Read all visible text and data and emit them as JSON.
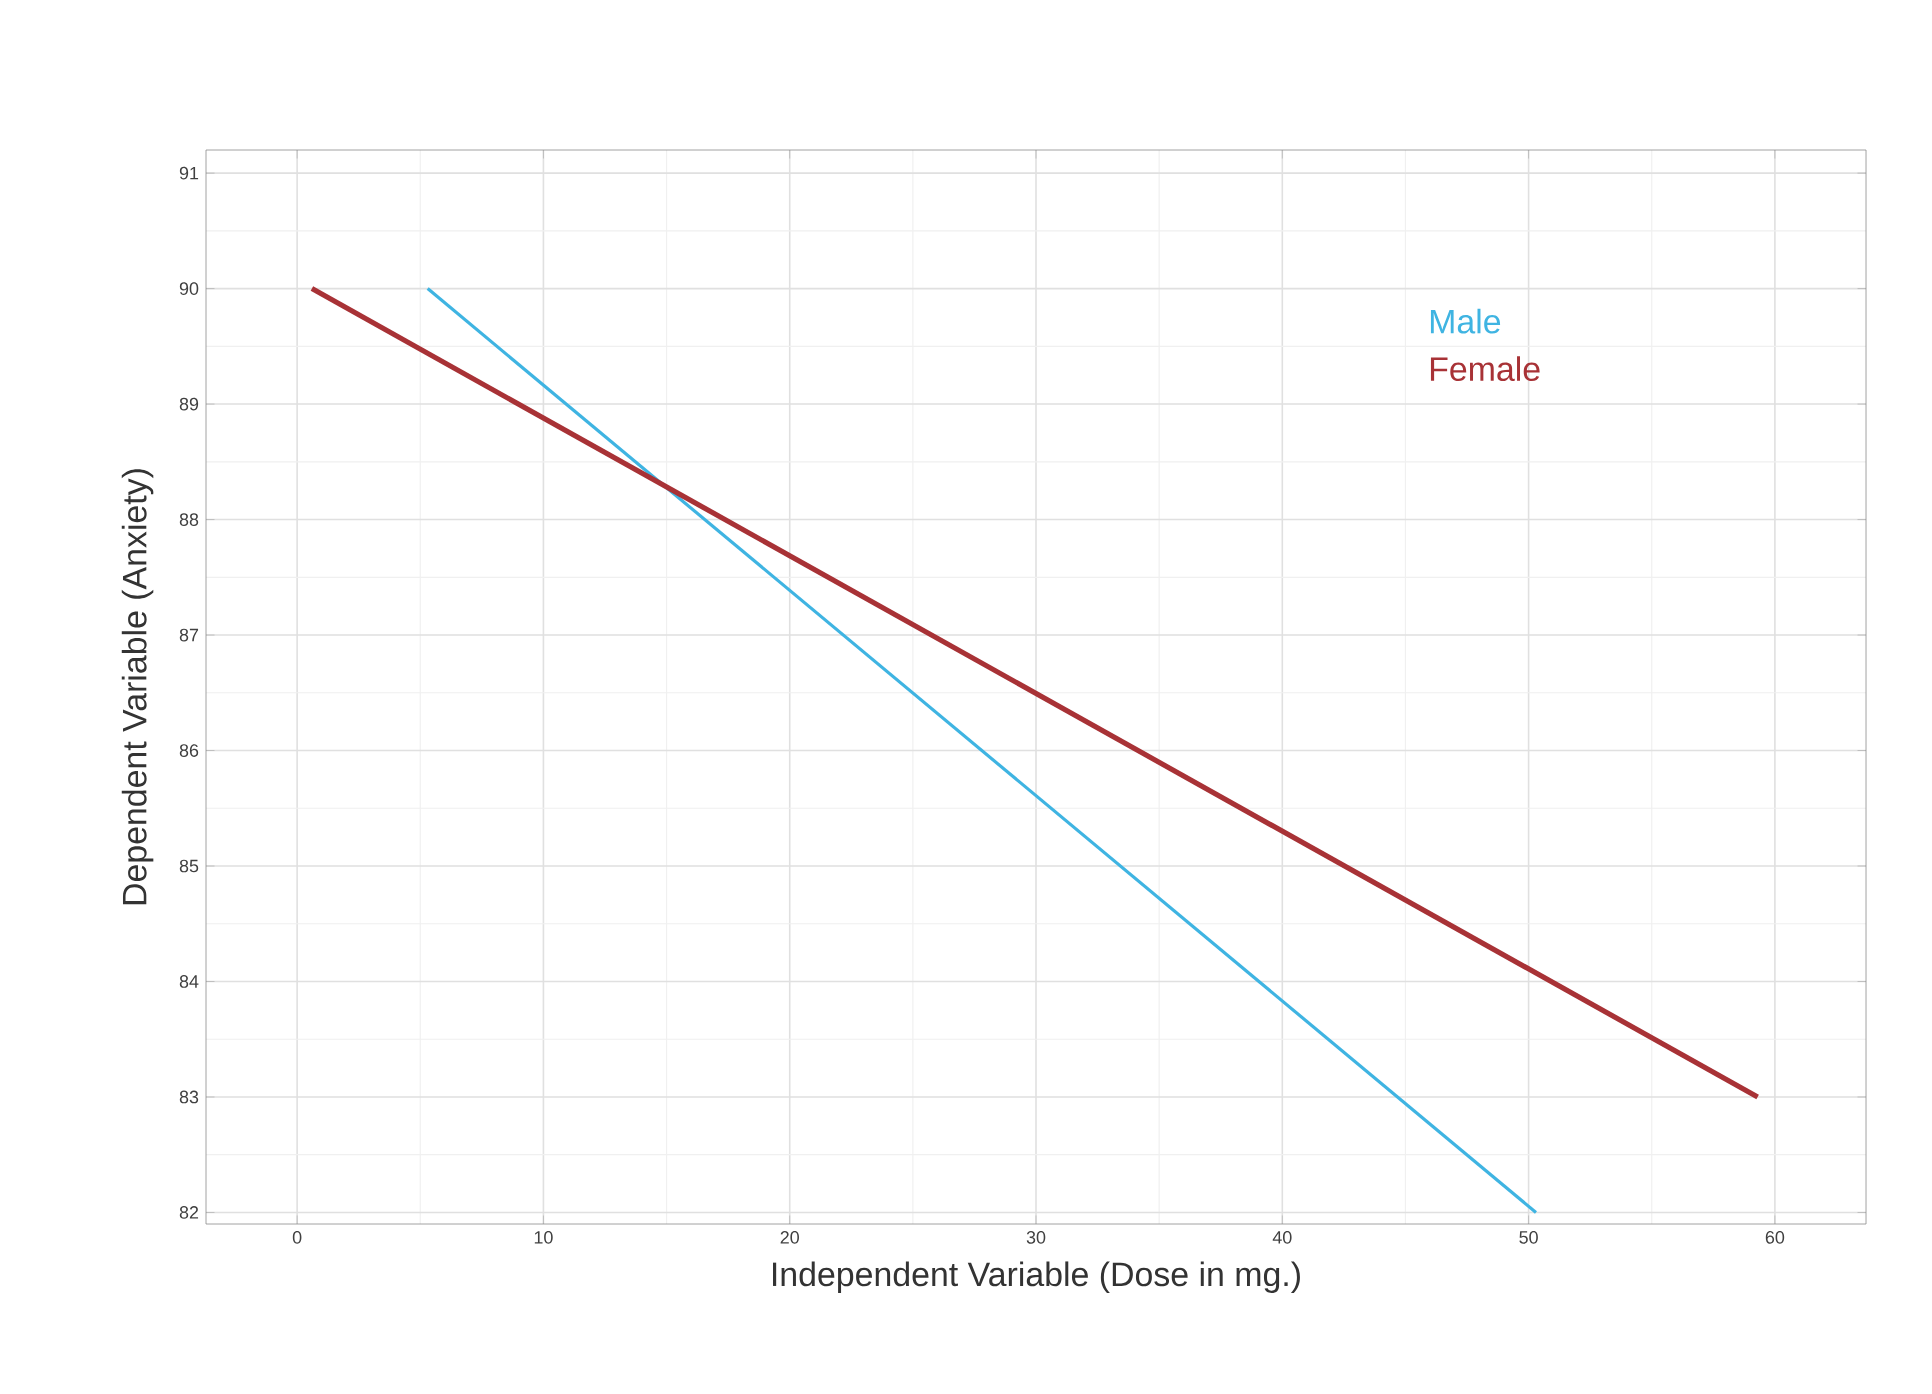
{
  "chart_data": {
    "type": "line",
    "xlabel": "Independent Variable (Dose in mg.)",
    "ylabel": "Dependent Variable (Anxiety)",
    "xlim": [
      -3.7,
      63.7
    ],
    "ylim": [
      81.9,
      91.2
    ],
    "xticks": [
      0,
      10,
      20,
      30,
      40,
      50,
      60
    ],
    "yticks": [
      82,
      83,
      84,
      85,
      86,
      87,
      88,
      89,
      90,
      91
    ],
    "grid": true,
    "legend": "top right",
    "marker": "none",
    "line_style": "solid",
    "series": [
      {
        "name": "Male",
        "color": "#3fb4e2",
        "x": [
          5.3,
          50.3
        ],
        "values": [
          90.0,
          82.0
        ]
      },
      {
        "name": "Female",
        "color": "#a83236",
        "x": [
          0.6,
          59.3
        ],
        "values": [
          90.0,
          83.0
        ]
      }
    ]
  }
}
